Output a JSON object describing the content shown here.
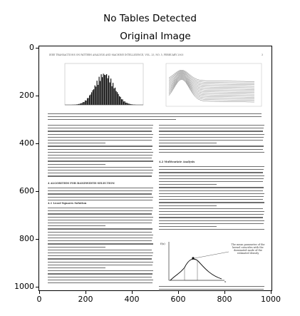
{
  "figure": {
    "suptitle": "No Tables Detected",
    "axes_title": "Original Image"
  },
  "axes": {
    "x_ticks": [
      "0",
      "200",
      "400",
      "600",
      "800",
      "1000"
    ],
    "y_ticks": [
      "0",
      "200",
      "400",
      "600",
      "800",
      "1000"
    ]
  },
  "paper": {
    "running_header": "IEEE TRANSACTIONS ON PATTERN ANALYSIS AND MACHINE INTELLIGENCE,   VOL. 25,   NO. 5,   FEBRUARY 2003",
    "page_number": "3",
    "section_heading": "4   ALGORITHM FOR BANDWIDTH SELECTION",
    "subsection_1": "4.1   Least-Squares Solution",
    "subsection_2": "4.2   Multivariate Analysis",
    "annotation": "The mean parameter of the kernel coincides with the dominated mode of the estimated density",
    "axis_symbol": "f(x)",
    "x_symbol": "x"
  }
}
